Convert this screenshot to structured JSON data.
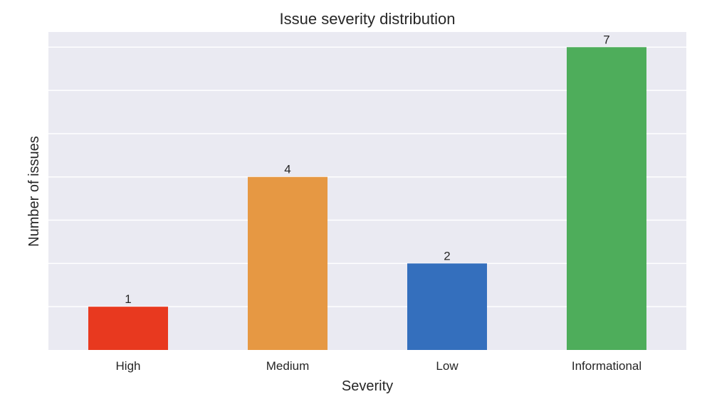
{
  "chart_data": {
    "type": "bar",
    "title": "Issue severity distribution",
    "xlabel": "Severity",
    "ylabel": "Number of issues",
    "categories": [
      "High",
      "Medium",
      "Low",
      "Informational"
    ],
    "values": [
      1,
      4,
      2,
      7
    ],
    "colors": [
      "#e8391f",
      "#e69843",
      "#346fbd",
      "#4ead5b"
    ],
    "ylim": [
      0,
      7.35
    ],
    "y_gridlines": [
      1,
      2,
      3,
      4,
      5,
      6,
      7
    ],
    "y_tick_labels_shown": false,
    "grid": true,
    "legend": "none",
    "style": {
      "plot_background": "#eaeaf2",
      "grid_color": "#ffffff"
    }
  }
}
